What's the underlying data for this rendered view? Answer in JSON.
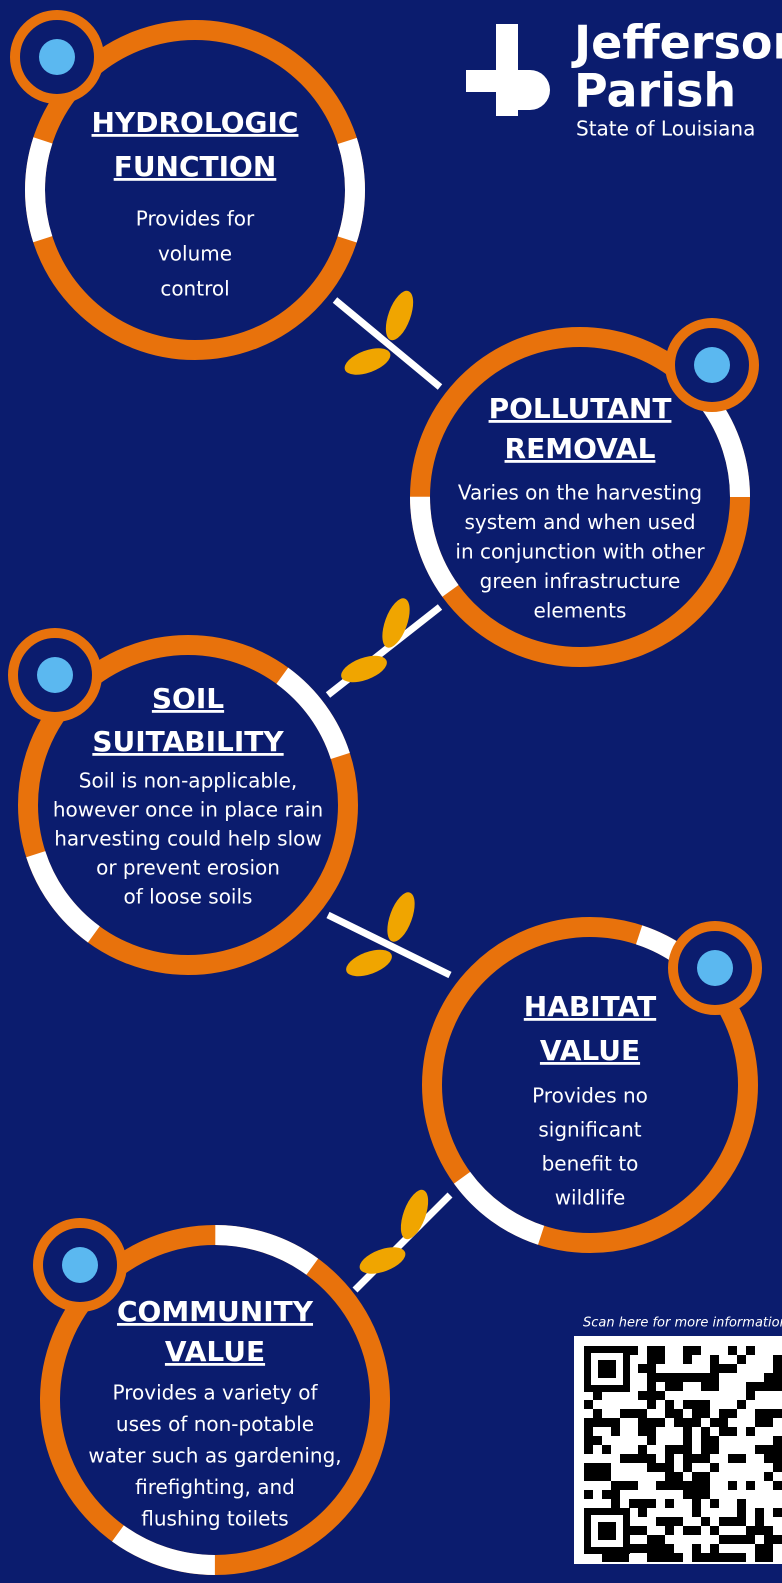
{
  "logo": {
    "line1": "Jefferson",
    "line2": "Parish",
    "line3": "State of Louisiana"
  },
  "cards": [
    {
      "title_lines": [
        "HYDROLOGIC",
        "FUNCTION"
      ],
      "body_lines": [
        "Provides for",
        "volume",
        "control"
      ]
    },
    {
      "title_lines": [
        "POLLUTANT",
        "REMOVAL"
      ],
      "body_lines": [
        "Varies on the harvesting",
        "system and when used",
        "in conjunction with other",
        "green infrastructure",
        "elements"
      ]
    },
    {
      "title_lines": [
        "SOIL",
        "SUITABILITY"
      ],
      "body_lines": [
        "Soil is non-applicable,",
        "however once in place rain",
        "harvesting could help slow",
        "or prevent erosion",
        "of loose soils"
      ]
    },
    {
      "title_lines": [
        "HABITAT",
        "VALUE"
      ],
      "body_lines": [
        "Provides no",
        "significant",
        "benefit to",
        "wildlife"
      ]
    },
    {
      "title_lines": [
        "COMMUNITY",
        "VALUE"
      ],
      "body_lines": [
        "Provides a variety of",
        "uses of non-potable",
        "water such as gardening,",
        "firefighting, and",
        "flushing toilets"
      ]
    }
  ],
  "qr_caption": "Scan here for more information"
}
